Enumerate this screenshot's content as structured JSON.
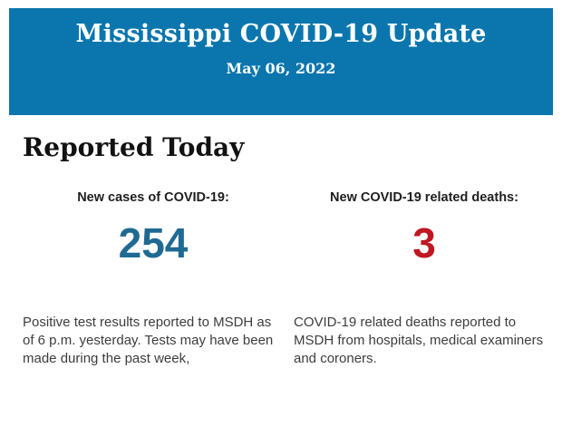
{
  "header": {
    "title": "Mississippi COVID-19 Update",
    "date": "May 06, 2022",
    "background_color": "#0a76ad",
    "text_color": "#ffffff"
  },
  "section": {
    "title": "Reported Today"
  },
  "stats": {
    "cases": {
      "label": "New cases of COVID-19:",
      "value": "254",
      "value_color": "#1f6a93",
      "description": "Positive test results reported to MSDH as of 6 p.m. yesterday. Tests may have been made during the past week,"
    },
    "deaths": {
      "label": "New COVID-19 related deaths:",
      "value": "3",
      "value_color": "#c01722",
      "description": "COVID-19 related deaths reported to MSDH from hospitals, medical examiners and coroners."
    }
  }
}
